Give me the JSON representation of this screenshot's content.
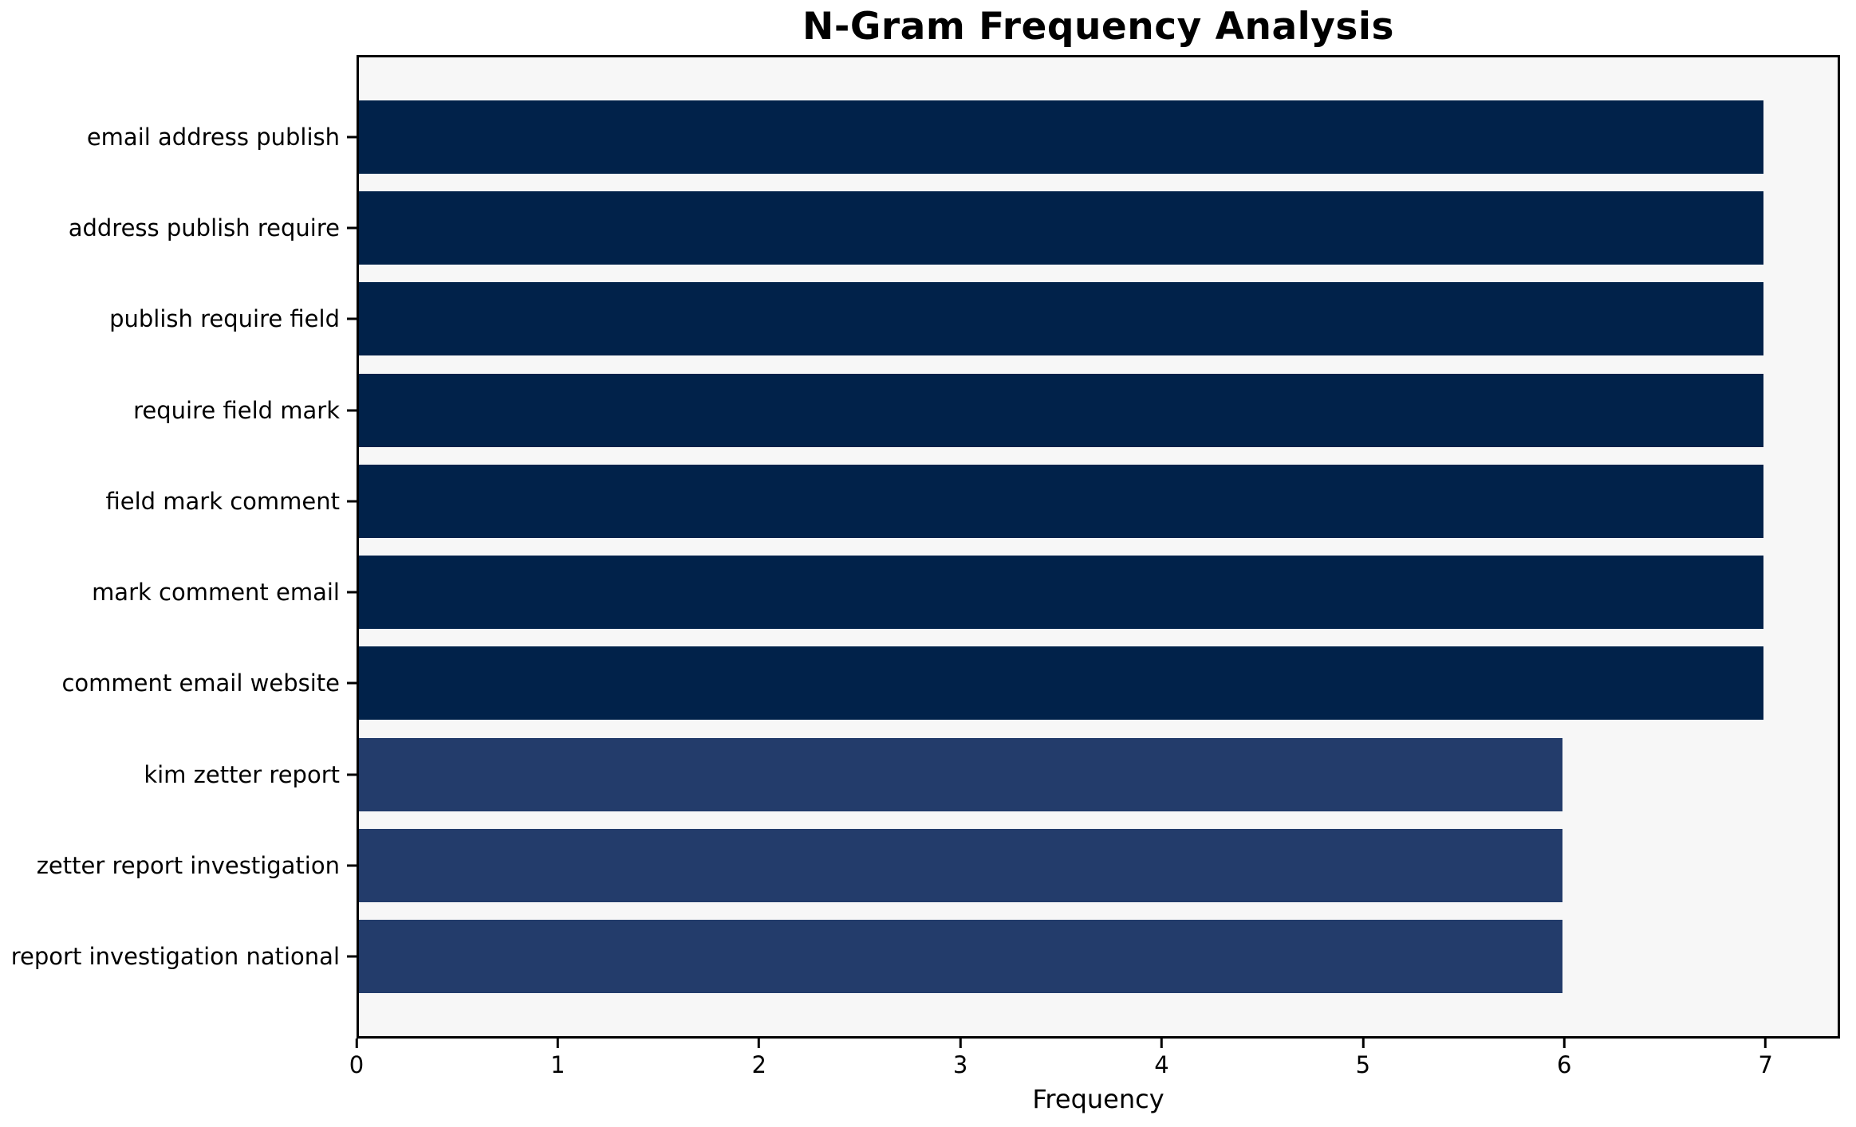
{
  "chart_data": {
    "type": "bar",
    "orientation": "horizontal",
    "title": "N-Gram Frequency Analysis",
    "xlabel": "Frequency",
    "ylabel": "",
    "categories": [
      "email address publish",
      "address publish require",
      "publish require field",
      "require field mark",
      "field mark comment",
      "mark comment email",
      "comment email website",
      "kim zetter report",
      "zetter report investigation",
      "report investigation national"
    ],
    "values": [
      7,
      7,
      7,
      7,
      7,
      7,
      7,
      6,
      6,
      6
    ],
    "bar_colors": [
      "#01224A",
      "#01224A",
      "#01224A",
      "#01224A",
      "#01224A",
      "#01224A",
      "#01224A",
      "#233C6B",
      "#233C6B",
      "#233C6B"
    ],
    "xlim": [
      0,
      7.37
    ],
    "xticks": [
      0,
      1,
      2,
      3,
      4,
      5,
      6,
      7
    ],
    "grid": false,
    "legend": null,
    "plot_background": "#f7f7f7",
    "figure_background": "#ffffff",
    "spine_color": "#000000"
  }
}
